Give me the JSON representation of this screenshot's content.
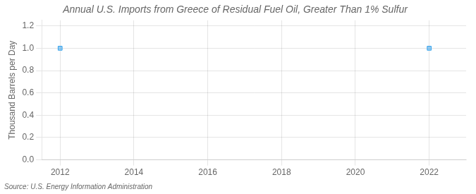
{
  "chart_data": {
    "type": "scatter",
    "title": "Annual U.S. Imports from Greece of Residual Fuel Oil, Greater Than 1% Sulfur",
    "ylabel": "Thousand Barrels per Day",
    "annotations": [
      "Source: U.S. Energy Information Administration"
    ],
    "x": [
      2012,
      2022
    ],
    "values": [
      1.0,
      1.0
    ],
    "marker": "square",
    "xlim": [
      2011.5,
      2023.0
    ],
    "xticks": [
      2012,
      2014,
      2016,
      2018,
      2020,
      2022
    ],
    "ylim": [
      0.0,
      1.25
    ],
    "yticks": [
      {
        "value": 0.0,
        "label": "0.0"
      },
      0.2,
      0.4,
      0.6,
      0.8,
      {
        "value": 1.0,
        "label": "1.0"
      },
      1.2
    ],
    "grid": true
  }
}
